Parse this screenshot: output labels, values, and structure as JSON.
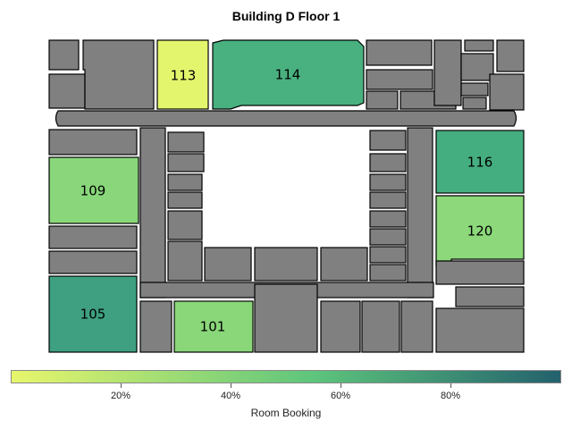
{
  "title": "Building D Floor 1",
  "rooms": [
    {
      "id": "113",
      "label": "113",
      "booking": 0.02,
      "color": "#e3f56c"
    },
    {
      "id": "114",
      "label": "114",
      "booking": 0.55,
      "color": "#48b17f"
    },
    {
      "id": "116",
      "label": "116",
      "booking": 0.57,
      "color": "#45ae80"
    },
    {
      "id": "109",
      "label": "109",
      "booking": 0.35,
      "color": "#89d77a"
    },
    {
      "id": "120",
      "label": "120",
      "booking": 0.35,
      "color": "#8cd87a"
    },
    {
      "id": "105",
      "label": "105",
      "booking": 0.62,
      "color": "#3ea080"
    },
    {
      "id": "101",
      "label": "101",
      "booking": 0.35,
      "color": "#8ad77a"
    }
  ],
  "legend": {
    "title": "Room Booking",
    "ticks": [
      "20%",
      "40%",
      "60%",
      "80%"
    ],
    "colors": {
      "low": "#e8f66c",
      "mid": "#5dc57c",
      "high": "#23616d"
    }
  }
}
